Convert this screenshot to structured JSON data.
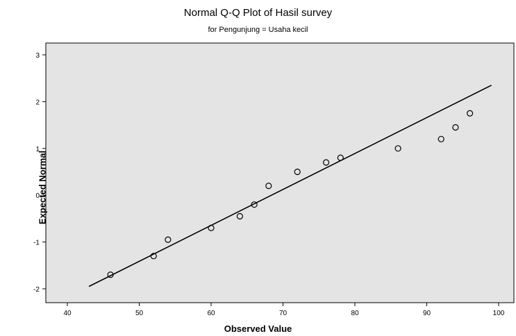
{
  "chart_data": {
    "type": "scatter",
    "title": "Normal Q-Q Plot of Hasil survey",
    "subtitle": "for Pengunjung = Usaha kecil",
    "xlabel": "Observed Value",
    "ylabel": "Expected Normal",
    "xlim": [
      40,
      100
    ],
    "ylim": [
      -2,
      3
    ],
    "x_ticks": [
      40,
      50,
      60,
      70,
      80,
      90,
      100
    ],
    "y_ticks": [
      -2,
      -1,
      0,
      1,
      2,
      3
    ],
    "grid": false,
    "background": "#e4e4e4",
    "line": {
      "x": [
        43,
        99
      ],
      "y": [
        -1.95,
        2.35
      ]
    },
    "points": [
      {
        "x": 46,
        "y": -1.7
      },
      {
        "x": 52,
        "y": -1.3
      },
      {
        "x": 54,
        "y": -0.95
      },
      {
        "x": 60,
        "y": -0.7
      },
      {
        "x": 64,
        "y": -0.45
      },
      {
        "x": 66,
        "y": -0.2
      },
      {
        "x": 68,
        "y": 0.2
      },
      {
        "x": 72,
        "y": 0.5
      },
      {
        "x": 76,
        "y": 0.7
      },
      {
        "x": 78,
        "y": 0.8
      },
      {
        "x": 86,
        "y": 1.0
      },
      {
        "x": 92,
        "y": 1.2
      },
      {
        "x": 94,
        "y": 1.45
      },
      {
        "x": 96,
        "y": 1.75
      }
    ]
  }
}
